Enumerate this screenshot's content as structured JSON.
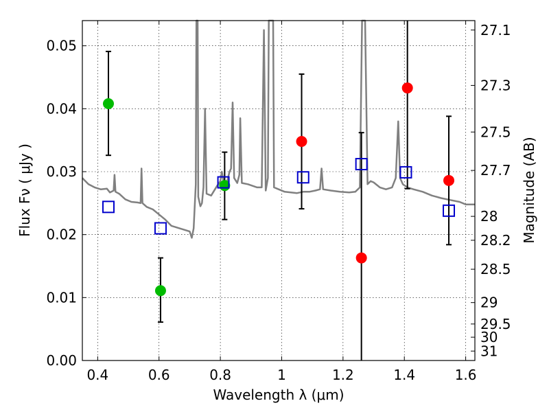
{
  "chart_data": {
    "type": "scatter",
    "xlabel": "Wavelength  λ (μm)",
    "ylabel": "Flux  Fν  ( μJy )",
    "ylabel_right": "Magnitude (AB)",
    "xlim": [
      0.35,
      1.63
    ],
    "ylim": [
      0.0,
      0.054
    ],
    "grid": true,
    "x_ticks": [
      {
        "value": 0.4,
        "label": "0.4"
      },
      {
        "value": 0.6,
        "label": "0.6"
      },
      {
        "value": 0.8,
        "label": "0.8"
      },
      {
        "value": 1.0,
        "label": "1"
      },
      {
        "value": 1.2,
        "label": "1.2"
      },
      {
        "value": 1.4,
        "label": "1.4"
      },
      {
        "value": 1.6,
        "label": "1.6"
      }
    ],
    "y_ticks": [
      {
        "value": 0.0,
        "label": "0.00"
      },
      {
        "value": 0.01,
        "label": "0.01"
      },
      {
        "value": 0.02,
        "label": "0.02"
      },
      {
        "value": 0.03,
        "label": "0.03"
      },
      {
        "value": 0.04,
        "label": "0.04"
      },
      {
        "value": 0.05,
        "label": "0.05"
      }
    ],
    "right_ticks": [
      {
        "flux": 0.0525,
        "label": "27.1"
      },
      {
        "flux": 0.0437,
        "label": "27.3"
      },
      {
        "flux": 0.0363,
        "label": "27.5"
      },
      {
        "flux": 0.0302,
        "label": "27.7"
      },
      {
        "flux": 0.0229,
        "label": "28"
      },
      {
        "flux": 0.0191,
        "label": "28.2"
      },
      {
        "flux": 0.0145,
        "label": "28.5"
      },
      {
        "flux": 0.0092,
        "label": "29"
      },
      {
        "flux": 0.0058,
        "label": "29.5"
      },
      {
        "flux": 0.0037,
        "label": "30"
      },
      {
        "flux": 0.0015,
        "label": "31"
      }
    ],
    "series": [
      {
        "color": "#808080",
        "marker": "line",
        "points": [
          [
            0.35,
            0.029
          ],
          [
            0.37,
            0.028
          ],
          [
            0.39,
            0.0275
          ],
          [
            0.41,
            0.0272
          ],
          [
            0.43,
            0.0273
          ],
          [
            0.44,
            0.0267
          ],
          [
            0.452,
            0.027
          ],
          [
            0.455,
            0.0295
          ],
          [
            0.458,
            0.0268
          ],
          [
            0.47,
            0.0265
          ],
          [
            0.49,
            0.0256
          ],
          [
            0.51,
            0.0252
          ],
          [
            0.53,
            0.0251
          ],
          [
            0.54,
            0.025
          ],
          [
            0.543,
            0.0305
          ],
          [
            0.546,
            0.025
          ],
          [
            0.56,
            0.0244
          ],
          [
            0.58,
            0.024
          ],
          [
            0.6,
            0.0232
          ],
          [
            0.62,
            0.0224
          ],
          [
            0.64,
            0.0214
          ],
          [
            0.66,
            0.0211
          ],
          [
            0.68,
            0.0208
          ],
          [
            0.7,
            0.0205
          ],
          [
            0.707,
            0.0195
          ],
          [
            0.713,
            0.021
          ],
          [
            0.72,
            0.028
          ],
          [
            0.722,
            0.054
          ],
          [
            0.726,
            0.054
          ],
          [
            0.728,
            0.026
          ],
          [
            0.735,
            0.0245
          ],
          [
            0.74,
            0.025
          ],
          [
            0.745,
            0.0275
          ],
          [
            0.75,
            0.04
          ],
          [
            0.755,
            0.0265
          ],
          [
            0.77,
            0.0262
          ],
          [
            0.79,
            0.0278
          ],
          [
            0.8,
            0.0285
          ],
          [
            0.805,
            0.03
          ],
          [
            0.81,
            0.0285
          ],
          [
            0.82,
            0.028
          ],
          [
            0.83,
            0.03
          ],
          [
            0.835,
            0.0305
          ],
          [
            0.84,
            0.041
          ],
          [
            0.845,
            0.029
          ],
          [
            0.855,
            0.0282
          ],
          [
            0.862,
            0.0295
          ],
          [
            0.865,
            0.0385
          ],
          [
            0.87,
            0.0282
          ],
          [
            0.89,
            0.028
          ],
          [
            0.92,
            0.0275
          ],
          [
            0.935,
            0.0275
          ],
          [
            0.942,
            0.0525
          ],
          [
            0.948,
            0.027
          ],
          [
            0.955,
            0.029
          ],
          [
            0.958,
            0.054
          ],
          [
            0.963,
            0.054
          ],
          [
            0.966,
            0.054
          ],
          [
            0.972,
            0.054
          ],
          [
            0.975,
            0.0275
          ],
          [
            0.99,
            0.0272
          ],
          [
            1.01,
            0.0268
          ],
          [
            1.03,
            0.0267
          ],
          [
            1.05,
            0.0266
          ],
          [
            1.07,
            0.0268
          ],
          [
            1.09,
            0.0268
          ],
          [
            1.11,
            0.027
          ],
          [
            1.125,
            0.0272
          ],
          [
            1.13,
            0.0305
          ],
          [
            1.135,
            0.0272
          ],
          [
            1.16,
            0.027
          ],
          [
            1.19,
            0.0268
          ],
          [
            1.22,
            0.0267
          ],
          [
            1.24,
            0.0268
          ],
          [
            1.255,
            0.0275
          ],
          [
            1.262,
            0.054
          ],
          [
            1.272,
            0.054
          ],
          [
            1.28,
            0.028
          ],
          [
            1.29,
            0.0285
          ],
          [
            1.3,
            0.0283
          ],
          [
            1.32,
            0.0275
          ],
          [
            1.34,
            0.0272
          ],
          [
            1.36,
            0.0275
          ],
          [
            1.372,
            0.029
          ],
          [
            1.38,
            0.038
          ],
          [
            1.386,
            0.029
          ],
          [
            1.395,
            0.028
          ],
          [
            1.41,
            0.0275
          ],
          [
            1.43,
            0.0272
          ],
          [
            1.46,
            0.0268
          ],
          [
            1.49,
            0.0262
          ],
          [
            1.52,
            0.0258
          ],
          [
            1.55,
            0.0255
          ],
          [
            1.58,
            0.0252
          ],
          [
            1.6,
            0.0248
          ],
          [
            1.63,
            0.0248
          ]
        ]
      },
      {
        "color": "#00bb00",
        "marker": "circle",
        "points": [
          [
            0.435,
            0.0408
          ],
          [
            0.605,
            0.0111
          ],
          [
            0.814,
            0.0278
          ]
        ],
        "errors": [
          [
            0.0326,
            0.0491
          ],
          [
            0.0061,
            0.0163
          ],
          [
            0.0224,
            0.0331
          ]
        ]
      },
      {
        "color": "#ff0000",
        "marker": "circle",
        "points": [
          [
            1.065,
            0.0348
          ],
          [
            1.26,
            0.0163
          ],
          [
            1.41,
            0.0433
          ],
          [
            1.545,
            0.0286
          ]
        ],
        "errors": [
          [
            0.0241,
            0.0455
          ],
          [
            0.0,
            0.0362
          ],
          [
            0.0273,
            0.054
          ],
          [
            0.0184,
            0.0388
          ]
        ]
      },
      {
        "color": "#0000cc",
        "marker": "open-square",
        "points": [
          [
            0.435,
            0.0244
          ],
          [
            0.605,
            0.021
          ],
          [
            0.81,
            0.0283
          ],
          [
            1.07,
            0.0291
          ],
          [
            1.26,
            0.0312
          ],
          [
            1.405,
            0.0299
          ],
          [
            1.545,
            0.0238
          ]
        ]
      }
    ]
  }
}
